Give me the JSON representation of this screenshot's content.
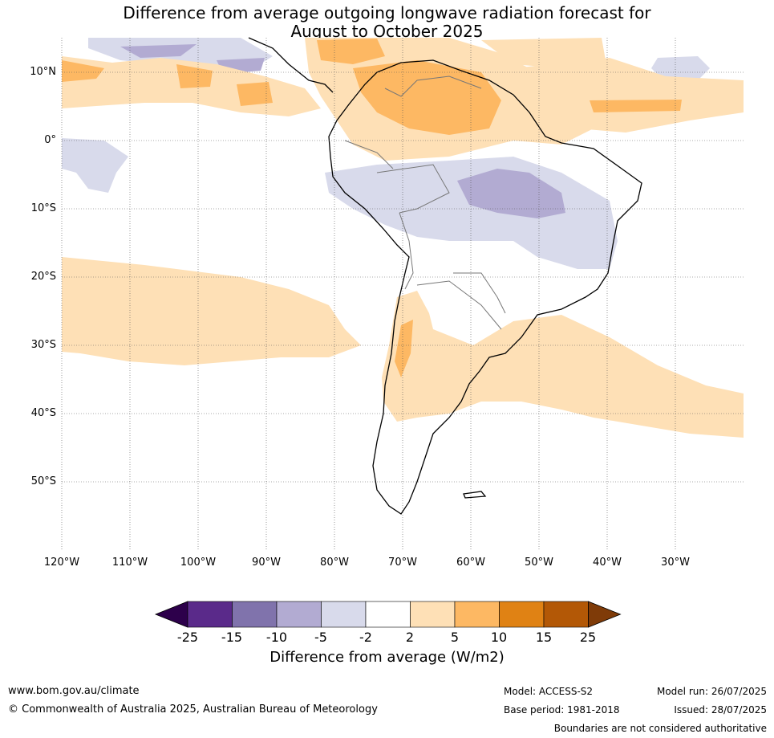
{
  "title_line1": "Difference from average outgoing longwave radiation forecast for",
  "title_line2": "August to October 2025",
  "lat_labels": [
    "10°N",
    "0°",
    "10°S",
    "20°S",
    "30°S",
    "40°S",
    "50°S"
  ],
  "lon_labels": [
    "120°W",
    "110°W",
    "100°W",
    "90°W",
    "80°W",
    "70°W",
    "60°W",
    "50°W",
    "40°W",
    "30°W"
  ],
  "legend": {
    "title": "Difference from average (W/m2)",
    "ticks": [
      "-25",
      "-15",
      "-10",
      "-5",
      "-2",
      "2",
      "5",
      "10",
      "15",
      "25"
    ],
    "colors": [
      "#2d004b",
      "#5a2a8a",
      "#8073ac",
      "#b2abd2",
      "#d8daeb",
      "#ffffff",
      "#fee0b6",
      "#fdb863",
      "#e08214",
      "#b35806",
      "#7f3b08"
    ]
  },
  "footer": {
    "website": "www.bom.gov.au/climate",
    "copyright": "© Commonwealth of Australia 2025, Australian Bureau of Meteorology",
    "model": "Model: ACCESS-S2",
    "base_period": "Base period: 1981-2018",
    "model_run": "Model run: 26/07/2025",
    "issued": "Issued: 28/07/2025",
    "disclaimer": "Boundaries are not considered authoritative"
  }
}
